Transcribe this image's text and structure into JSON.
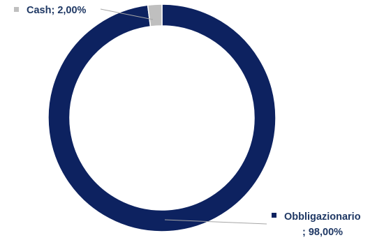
{
  "chart_data": {
    "type": "pie",
    "style": "donut",
    "slices": [
      {
        "name": "Obbligazionario",
        "value": 98.0,
        "label_line1": "Obbligazionario",
        "label_line2": "; 98,00%",
        "color": "#0d2260"
      },
      {
        "name": "Cash",
        "value": 2.0,
        "label_line1": "Cash; 2,00%",
        "color": "#bfbfbf"
      }
    ],
    "legend": "data labels with leader lines"
  }
}
